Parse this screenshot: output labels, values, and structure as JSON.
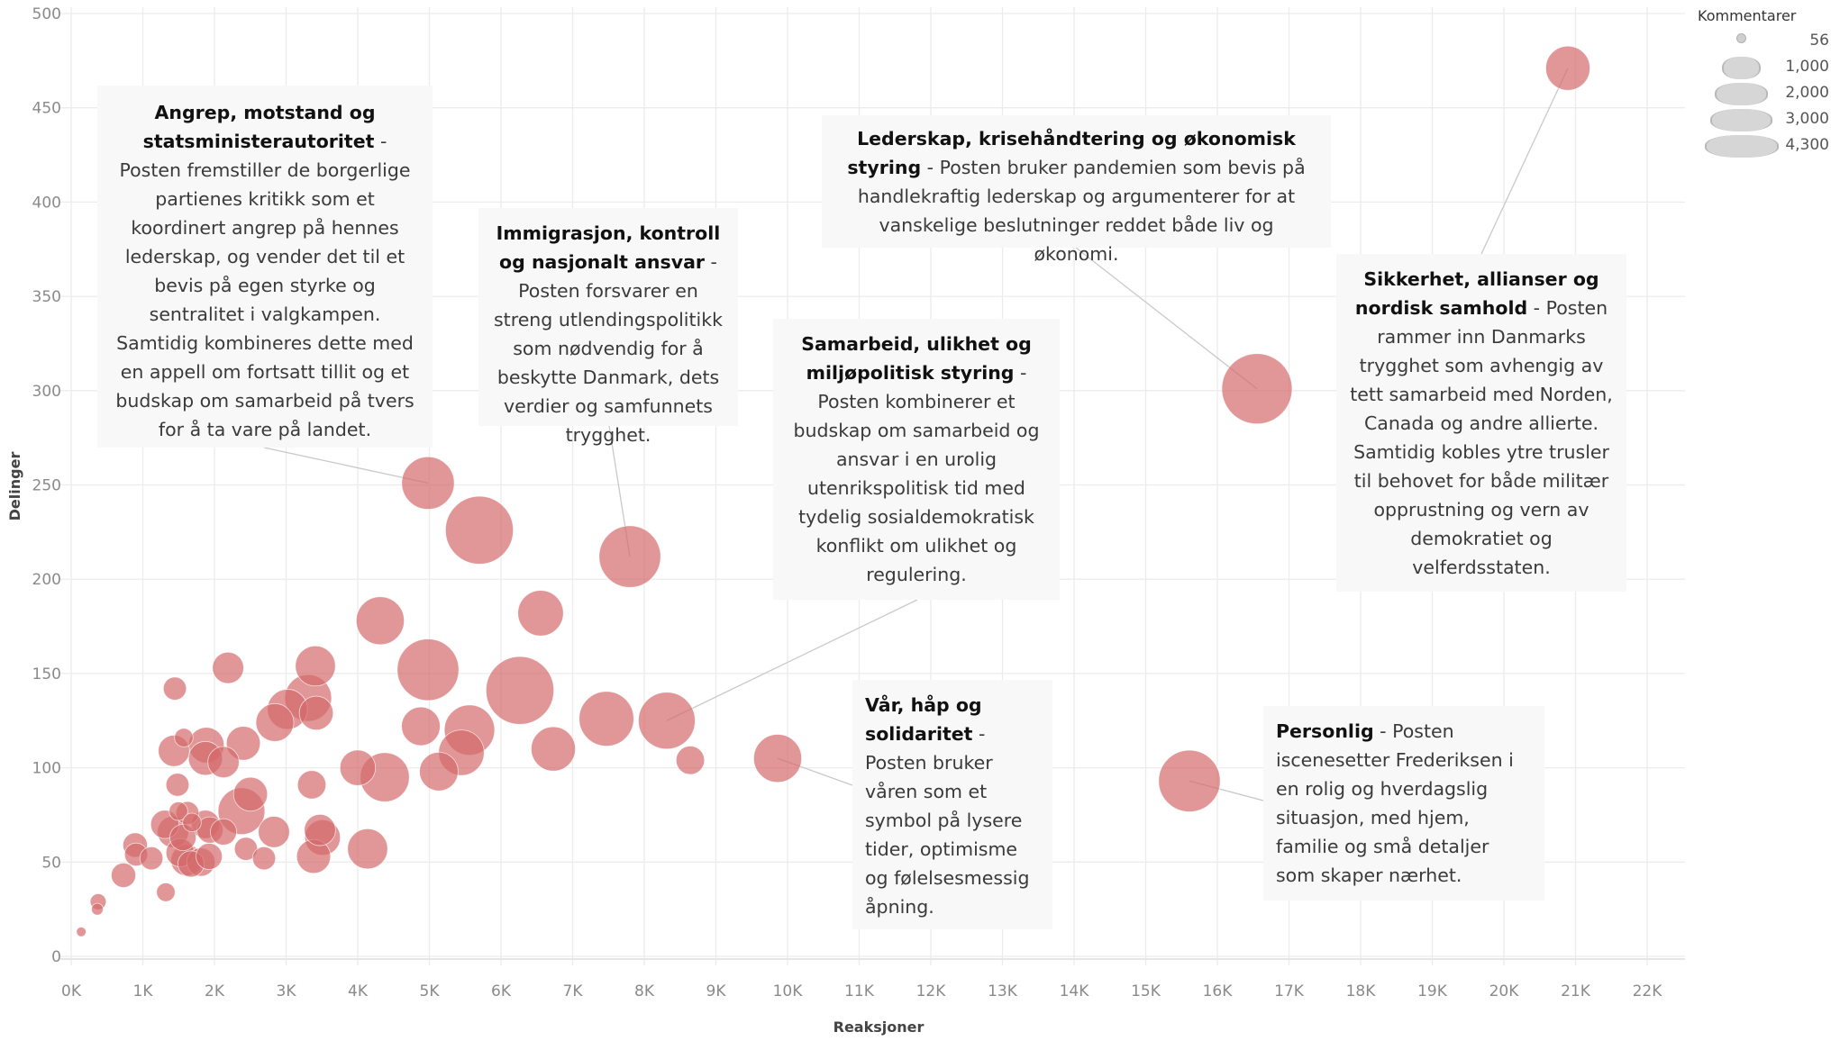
{
  "chart_data": {
    "type": "scatter",
    "subtype": "bubble",
    "xlabel": "Reaksjoner",
    "ylabel": "Delinger",
    "xlim": [
      0,
      22000
    ],
    "ylim": [
      0,
      500
    ],
    "grid": true,
    "x_ticks": [
      "0K",
      "1K",
      "2K",
      "3K",
      "4K",
      "5K",
      "6K",
      "7K",
      "8K",
      "9K",
      "10K",
      "11K",
      "12K",
      "13K",
      "14K",
      "15K",
      "16K",
      "17K",
      "18K",
      "19K",
      "20K",
      "21K",
      "22K"
    ],
    "y_ticks": [
      "0",
      "50",
      "100",
      "150",
      "200",
      "250",
      "300",
      "350",
      "400",
      "450",
      "500"
    ],
    "color": "#d4696b",
    "size_legend": {
      "title": "Kommentarer",
      "position": "top-right",
      "entries": [
        {
          "label": "56",
          "value": 56
        },
        {
          "label": "1,000",
          "value": 1000
        },
        {
          "label": "2,000",
          "value": 2000
        },
        {
          "label": "3,000",
          "value": 3000
        },
        {
          "label": "4,300",
          "value": 4300
        }
      ]
    },
    "points": [
      {
        "x": 140,
        "y": 13,
        "size": 80
      },
      {
        "x": 365,
        "y": 25,
        "size": 120
      },
      {
        "x": 377,
        "y": 29,
        "size": 220
      },
      {
        "x": 730,
        "y": 43,
        "size": 520
      },
      {
        "x": 893,
        "y": 59,
        "size": 520
      },
      {
        "x": 906,
        "y": 54,
        "size": 460
      },
      {
        "x": 1120,
        "y": 52,
        "size": 460
      },
      {
        "x": 1321,
        "y": 34,
        "size": 300
      },
      {
        "x": 1447,
        "y": 142,
        "size": 460
      },
      {
        "x": 1572,
        "y": 116,
        "size": 300
      },
      {
        "x": 1434,
        "y": 109,
        "size": 850
      },
      {
        "x": 1484,
        "y": 91,
        "size": 460
      },
      {
        "x": 2190,
        "y": 153,
        "size": 850
      },
      {
        "x": 1887,
        "y": 112,
        "size": 1100
      },
      {
        "x": 1874,
        "y": 105,
        "size": 1000
      },
      {
        "x": 2126,
        "y": 103,
        "size": 850
      },
      {
        "x": 2403,
        "y": 113,
        "size": 1000
      },
      {
        "x": 2843,
        "y": 124,
        "size": 1250
      },
      {
        "x": 3019,
        "y": 131,
        "size": 1400
      },
      {
        "x": 3308,
        "y": 137,
        "size": 1900
      },
      {
        "x": 3409,
        "y": 154,
        "size": 1400
      },
      {
        "x": 3421,
        "y": 129,
        "size": 1000
      },
      {
        "x": 4000,
        "y": 100,
        "size": 1100
      },
      {
        "x": 4377,
        "y": 95,
        "size": 2100
      },
      {
        "x": 3358,
        "y": 91,
        "size": 700
      },
      {
        "x": 2503,
        "y": 86,
        "size": 1000
      },
      {
        "x": 2377,
        "y": 77,
        "size": 1900
      },
      {
        "x": 1308,
        "y": 70,
        "size": 700
      },
      {
        "x": 1497,
        "y": 77,
        "size": 300
      },
      {
        "x": 1623,
        "y": 76,
        "size": 460
      },
      {
        "x": 1421,
        "y": 66,
        "size": 850
      },
      {
        "x": 1560,
        "y": 63,
        "size": 600
      },
      {
        "x": 1686,
        "y": 71,
        "size": 300
      },
      {
        "x": 1874,
        "y": 70,
        "size": 700
      },
      {
        "x": 1937,
        "y": 67,
        "size": 600
      },
      {
        "x": 2126,
        "y": 66,
        "size": 600
      },
      {
        "x": 1522,
        "y": 55,
        "size": 700
      },
      {
        "x": 1610,
        "y": 51,
        "size": 850
      },
      {
        "x": 1673,
        "y": 49,
        "size": 600
      },
      {
        "x": 1811,
        "y": 50,
        "size": 700
      },
      {
        "x": 1925,
        "y": 53,
        "size": 600
      },
      {
        "x": 2440,
        "y": 57,
        "size": 460
      },
      {
        "x": 2692,
        "y": 52,
        "size": 460
      },
      {
        "x": 2830,
        "y": 66,
        "size": 850
      },
      {
        "x": 3384,
        "y": 53,
        "size": 1000
      },
      {
        "x": 3472,
        "y": 67,
        "size": 850
      },
      {
        "x": 3509,
        "y": 63,
        "size": 1100
      },
      {
        "x": 4138,
        "y": 57,
        "size": 1400
      },
      {
        "x": 4981,
        "y": 251,
        "size": 2400
      },
      {
        "x": 5698,
        "y": 226,
        "size": 4000
      },
      {
        "x": 7799,
        "y": 212,
        "size": 3300
      },
      {
        "x": 4314,
        "y": 178,
        "size": 2000
      },
      {
        "x": 6553,
        "y": 182,
        "size": 1800
      },
      {
        "x": 4981,
        "y": 152,
        "size": 3300
      },
      {
        "x": 6264,
        "y": 141,
        "size": 4000
      },
      {
        "x": 7472,
        "y": 126,
        "size": 2600
      },
      {
        "x": 8314,
        "y": 125,
        "size": 2800
      },
      {
        "x": 4881,
        "y": 122,
        "size": 1300
      },
      {
        "x": 5560,
        "y": 120,
        "size": 2200
      },
      {
        "x": 5447,
        "y": 108,
        "size": 1800
      },
      {
        "x": 6730,
        "y": 110,
        "size": 1700
      },
      {
        "x": 8642,
        "y": 104,
        "size": 700
      },
      {
        "x": 9862,
        "y": 105,
        "size": 2000
      },
      {
        "x": 5132,
        "y": 98,
        "size": 1300
      },
      {
        "x": 15610,
        "y": 93,
        "size": 3300
      },
      {
        "x": 16553,
        "y": 301,
        "size": 4300
      },
      {
        "x": 20893,
        "y": 471,
        "size": 1700
      }
    ],
    "annotations": [
      {
        "id": "angrep",
        "title": "Angrep, motstand og statsministerautoritet",
        "text": " - Posten fremstiller de borgerlige partienes kritikk som et koordinert angrep på hennes lederskap, og vender det til et bevis på egen styrke og sentralitet i valgkampen. Samtidig kombineres dette med en appell om fortsatt tillit og et budskap om samarbeid på tvers for å ta vare på landet.",
        "point": {
          "x": 4981,
          "y": 251
        }
      },
      {
        "id": "immigrasjon",
        "title": "Immigrasjon, kontroll og nasjonalt ansvar",
        "text": " - Posten forsvarer en streng utlendingspolitikk som nødvendig for å beskytte Danmark, dets verdier og samfunnets trygghet.",
        "point": {
          "x": 7799,
          "y": 212
        }
      },
      {
        "id": "lederskap",
        "title": "Lederskap, krisehåndtering og økonomisk styring",
        "text": " - Posten bruker pandemien som bevis på handlekraftig lederskap og argumenterer for at vanskelige beslutninger reddet både liv og økonomi.",
        "point": {
          "x": 16553,
          "y": 301
        }
      },
      {
        "id": "samarbeid",
        "title": "Samarbeid, ulikhet og miljøpolitisk styring",
        "text": " - Posten kombinerer et budskap om samarbeid og ansvar i en urolig utenrikspolitisk tid med tydelig sosialdemokratisk konflikt om ulikhet og regulering.",
        "point": {
          "x": 8314,
          "y": 125
        }
      },
      {
        "id": "sikkerhet",
        "title": "Sikkerhet, allianser og nordisk samhold",
        "text": " - Posten rammer inn Danmarks trygghet som avhengig av tett samarbeid med Norden, Canada og andre allierte. Samtidig kobles ytre trusler til behovet for både militær opprustning og vern av demokratiet og velferdsstaten.",
        "point": {
          "x": 20893,
          "y": 471
        }
      },
      {
        "id": "vaar",
        "title": "Vår, håp og solidaritet",
        "text": " - Posten bruker våren som et symbol på lysere tider, optimisme og følelsesmessig åpning.",
        "point": {
          "x": 9862,
          "y": 105
        }
      },
      {
        "id": "personlig",
        "title": "Personlig",
        "text": " - Posten iscenesetter Frederiksen i en rolig og hverdagslig situasjon, med hjem, familie og små detaljer som skaper nærhet.",
        "point": {
          "x": 15610,
          "y": 93
        }
      }
    ]
  }
}
